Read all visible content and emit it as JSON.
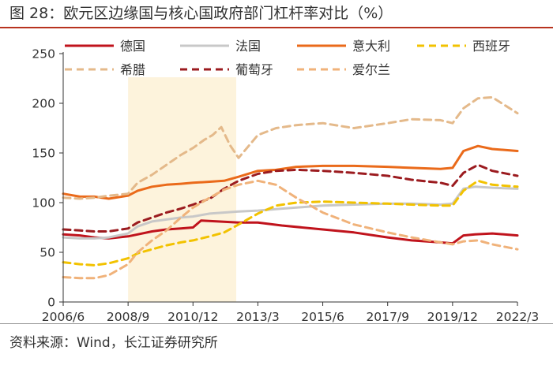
{
  "header": {
    "title": "图 28：欧元区边缘国与核心国政府部门杠杆率对比（%）"
  },
  "footer": {
    "source": "资料来源：Wind，长江证券研究所"
  },
  "colors": {
    "德国": "#c0131c",
    "法国": "#c8c8c8",
    "意大利": "#ea6a1a",
    "西班牙": "#f2c200",
    "希腊": "#e4b98a",
    "葡萄牙": "#9b1b1f",
    "爱尔兰": "#f0b27a",
    "highlight": "#fdf3dc"
  },
  "chart_data": {
    "type": "line",
    "title": "欧元区边缘国与核心国政府部门杠杆率对比（%）",
    "xlabel": "",
    "ylabel": "",
    "ylim": [
      0,
      250
    ],
    "yticks": [
      0,
      50,
      100,
      150,
      200,
      250
    ],
    "x_tick_labels": [
      "2006/6",
      "2008/9",
      "2010/12",
      "2013/3",
      "2015/6",
      "2017/9",
      "2019/12",
      "2022/3"
    ],
    "x_tick_positions": [
      2006.42,
      2008.67,
      2010.92,
      2013.17,
      2015.42,
      2017.67,
      2019.92,
      2022.17
    ],
    "xlim": [
      2006.42,
      2022.17
    ],
    "highlight_period": [
      2008.67,
      2012.42
    ],
    "legend_position": "top",
    "series": [
      {
        "name": "德国",
        "style": "solid",
        "x": [
          2006.42,
          2007,
          2007.5,
          2008,
          2008.67,
          2009,
          2009.5,
          2010,
          2010.5,
          2010.92,
          2011.2,
          2011.8,
          2012.5,
          2013.17,
          2014,
          2015.42,
          2016.5,
          2017.67,
          2018.5,
          2019.5,
          2019.92,
          2020.3,
          2020.7,
          2021.3,
          2022.17
        ],
        "y": [
          68,
          67,
          65,
          64,
          66,
          68,
          71,
          73,
          74,
          75,
          82,
          81,
          80,
          80,
          77,
          73,
          70,
          65,
          62,
          60,
          59,
          67,
          68,
          69,
          67
        ]
      },
      {
        "name": "法国",
        "style": "solid",
        "x": [
          2006.42,
          2007,
          2007.5,
          2008,
          2008.67,
          2009,
          2009.5,
          2010,
          2010.5,
          2010.92,
          2011.5,
          2012.5,
          2013.17,
          2014,
          2015.42,
          2016.5,
          2017.67,
          2018.5,
          2019.5,
          2019.92,
          2020.3,
          2020.7,
          2021.3,
          2022.17
        ],
        "y": [
          65,
          64,
          64,
          65,
          69,
          76,
          81,
          83,
          85,
          86,
          89,
          91,
          92,
          94,
          97,
          98,
          99,
          99,
          98,
          99,
          114,
          116,
          115,
          114
        ]
      },
      {
        "name": "意大利",
        "style": "solid",
        "x": [
          2006.42,
          2007,
          2007.5,
          2008,
          2008.67,
          2009,
          2009.5,
          2010,
          2010.5,
          2010.92,
          2011.5,
          2012,
          2012.5,
          2013.17,
          2013.8,
          2014.5,
          2015.42,
          2016.5,
          2017.67,
          2018.5,
          2019.5,
          2019.92,
          2020.3,
          2020.8,
          2021.3,
          2022.17
        ],
        "y": [
          109,
          106,
          106,
          104,
          107,
          112,
          116,
          118,
          119,
          120,
          121,
          122,
          126,
          132,
          133,
          136,
          137,
          137,
          136,
          135,
          134,
          135,
          152,
          157,
          154,
          152
        ]
      },
      {
        "name": "西班牙",
        "style": "dashed",
        "x": [
          2006.42,
          2007,
          2007.5,
          2008,
          2008.67,
          2009,
          2009.5,
          2010,
          2010.5,
          2010.92,
          2011.5,
          2012,
          2012.5,
          2013.17,
          2013.8,
          2014.5,
          2015.42,
          2016.5,
          2017.67,
          2018.5,
          2019.5,
          2019.92,
          2020.3,
          2020.8,
          2021.3,
          2022.17
        ],
        "y": [
          40,
          38,
          37,
          39,
          44,
          49,
          53,
          57,
          60,
          62,
          66,
          70,
          78,
          89,
          97,
          100,
          101,
          100,
          99,
          98,
          97,
          97,
          112,
          122,
          118,
          116
        ]
      },
      {
        "name": "希腊",
        "style": "dashed",
        "x": [
          2006.42,
          2007,
          2007.5,
          2008,
          2008.67,
          2009,
          2009.5,
          2010,
          2010.5,
          2010.92,
          2011.3,
          2011.6,
          2011.9,
          2012.2,
          2012.5,
          2013.17,
          2013.8,
          2014.5,
          2015.42,
          2016.5,
          2017.67,
          2018.5,
          2019.5,
          2019.92,
          2020.3,
          2020.8,
          2021.3,
          2022.17
        ],
        "y": [
          105,
          104,
          105,
          107,
          109,
          120,
          128,
          138,
          148,
          155,
          163,
          168,
          176,
          158,
          145,
          168,
          175,
          178,
          180,
          175,
          180,
          184,
          183,
          180,
          195,
          205,
          206,
          190
        ]
      },
      {
        "name": "葡萄牙",
        "style": "dashed",
        "x": [
          2006.42,
          2007,
          2007.5,
          2008,
          2008.67,
          2009,
          2009.5,
          2010,
          2010.5,
          2010.92,
          2011.5,
          2012,
          2012.5,
          2013.17,
          2013.8,
          2014.5,
          2015.42,
          2016.5,
          2017.67,
          2018.5,
          2019.5,
          2019.92,
          2020.3,
          2020.8,
          2021.3,
          2022.17
        ],
        "y": [
          73,
          72,
          71,
          71,
          74,
          80,
          85,
          90,
          94,
          98,
          104,
          114,
          122,
          129,
          132,
          133,
          132,
          130,
          127,
          123,
          120,
          117,
          130,
          138,
          132,
          127
        ]
      },
      {
        "name": "爱尔兰",
        "style": "dashed",
        "x": [
          2006.42,
          2007,
          2007.5,
          2008,
          2008.67,
          2009,
          2009.5,
          2010,
          2010.5,
          2010.92,
          2011.5,
          2012,
          2012.5,
          2013.17,
          2013.8,
          2014.5,
          2015.42,
          2016.5,
          2017.67,
          2018.5,
          2019.5,
          2019.92,
          2020.3,
          2020.8,
          2021.3,
          2022.17
        ],
        "y": [
          25,
          24,
          24,
          27,
          38,
          50,
          62,
          72,
          85,
          95,
          105,
          113,
          118,
          122,
          118,
          105,
          90,
          78,
          70,
          65,
          60,
          58,
          61,
          62,
          58,
          53
        ]
      }
    ]
  }
}
